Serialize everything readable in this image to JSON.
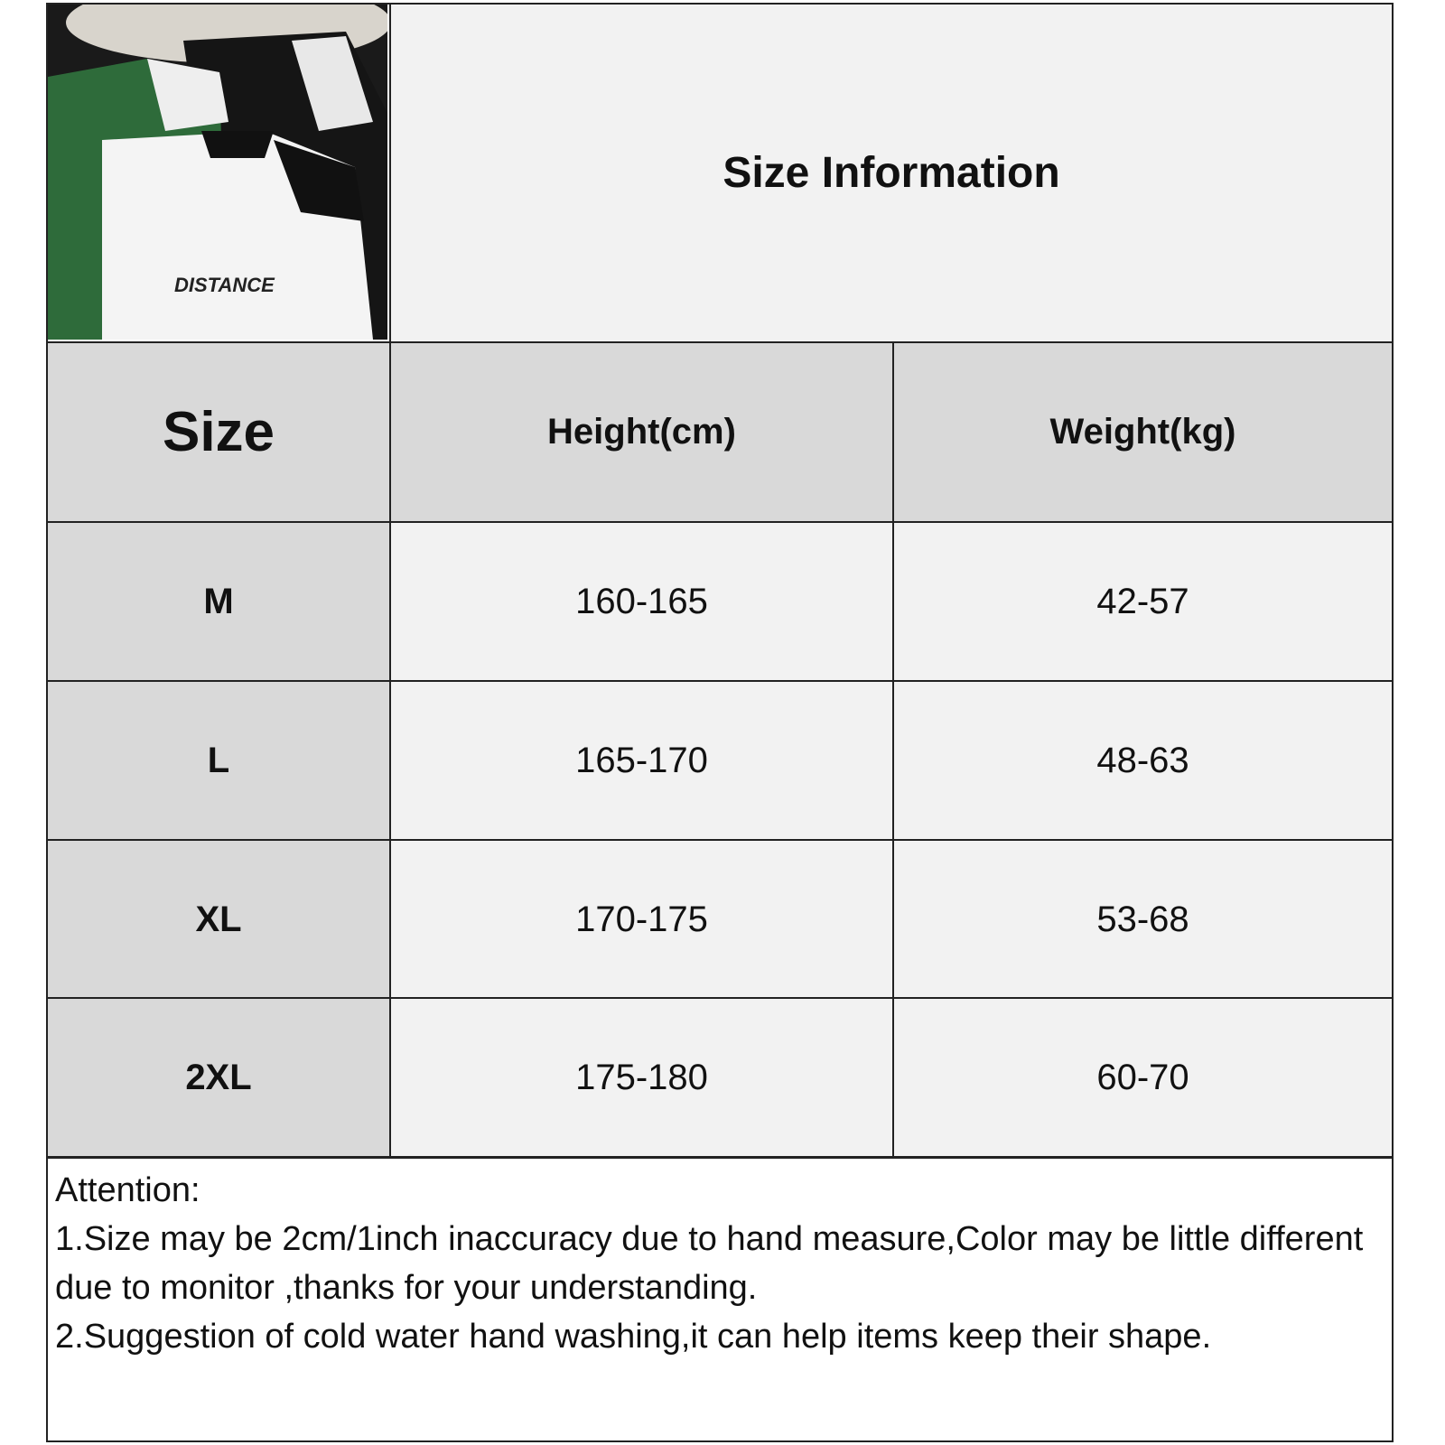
{
  "title": "Size Information",
  "product_image": {
    "description_icon": "polo-shirts-photo"
  },
  "table": {
    "headers": [
      "Size",
      "Height(cm)",
      "Weight(kg)"
    ],
    "rows": [
      {
        "size": "M",
        "height": "160-165",
        "weight": "42-57"
      },
      {
        "size": "L",
        "height": "165-170",
        "weight": "48-63"
      },
      {
        "size": "XL",
        "height": "170-175",
        "weight": "53-68"
      },
      {
        "size": "2XL",
        "height": "175-180",
        "weight": "60-70"
      }
    ]
  },
  "attention": {
    "heading": "Attention:",
    "line1": "1.Size may be 2cm/1inch inaccuracy due to hand measure,Color may be little different due to monitor ,thanks for your understanding.",
    "line2": "2.Suggestion of cold water hand washing,it can help items keep their shape."
  }
}
